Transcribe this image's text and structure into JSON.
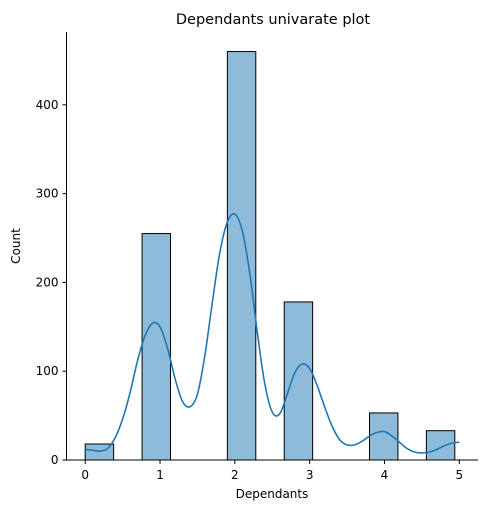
{
  "chart_data": {
    "type": "bar",
    "title": "Dependants univarate plot",
    "xlabel": "Dependants",
    "ylabel": "Count",
    "xlim": [
      -0.25,
      5.25
    ],
    "ylim": [
      0,
      482
    ],
    "x_ticks": [
      0,
      1,
      2,
      3,
      4,
      5
    ],
    "y_ticks": [
      0,
      100,
      200,
      300,
      400
    ],
    "grid": false,
    "bars": [
      {
        "x0": 0.0,
        "x1": 0.38,
        "value": 18
      },
      {
        "x0": 0.76,
        "x1": 1.14,
        "value": 255
      },
      {
        "x0": 1.9,
        "x1": 2.28,
        "value": 460
      },
      {
        "x0": 2.66,
        "x1": 3.04,
        "value": 178
      },
      {
        "x0": 3.8,
        "x1": 4.18,
        "value": 53
      },
      {
        "x0": 4.56,
        "x1": 4.94,
        "value": 33
      }
    ],
    "kde": {
      "x": [
        0.0,
        0.1,
        0.2,
        0.3,
        0.4,
        0.5,
        0.6,
        0.7,
        0.8,
        0.9,
        1.0,
        1.1,
        1.2,
        1.3,
        1.4,
        1.5,
        1.6,
        1.7,
        1.8,
        1.9,
        2.0,
        2.1,
        2.2,
        2.3,
        2.4,
        2.5,
        2.6,
        2.7,
        2.8,
        2.9,
        3.0,
        3.1,
        3.2,
        3.3,
        3.4,
        3.5,
        3.6,
        3.7,
        3.8,
        3.9,
        4.0,
        4.1,
        4.2,
        4.3,
        4.4,
        4.5,
        4.6,
        4.7,
        4.8,
        4.9,
        5.0
      ],
      "y": [
        12,
        11,
        10,
        13,
        25,
        46,
        76,
        112,
        140,
        154,
        150,
        126,
        92,
        66,
        60,
        74,
        118,
        178,
        234,
        268,
        277,
        258,
        210,
        144,
        86,
        54,
        52,
        74,
        98,
        108,
        103,
        84,
        60,
        38,
        23,
        17,
        17,
        21,
        27,
        31,
        32,
        27,
        20,
        13,
        9,
        8,
        9,
        12,
        16,
        19,
        20
      ]
    },
    "colors": {
      "bar_fill": "#8fbbdb",
      "bar_edge": "#000000",
      "kde_line": "#1f77b4"
    }
  }
}
